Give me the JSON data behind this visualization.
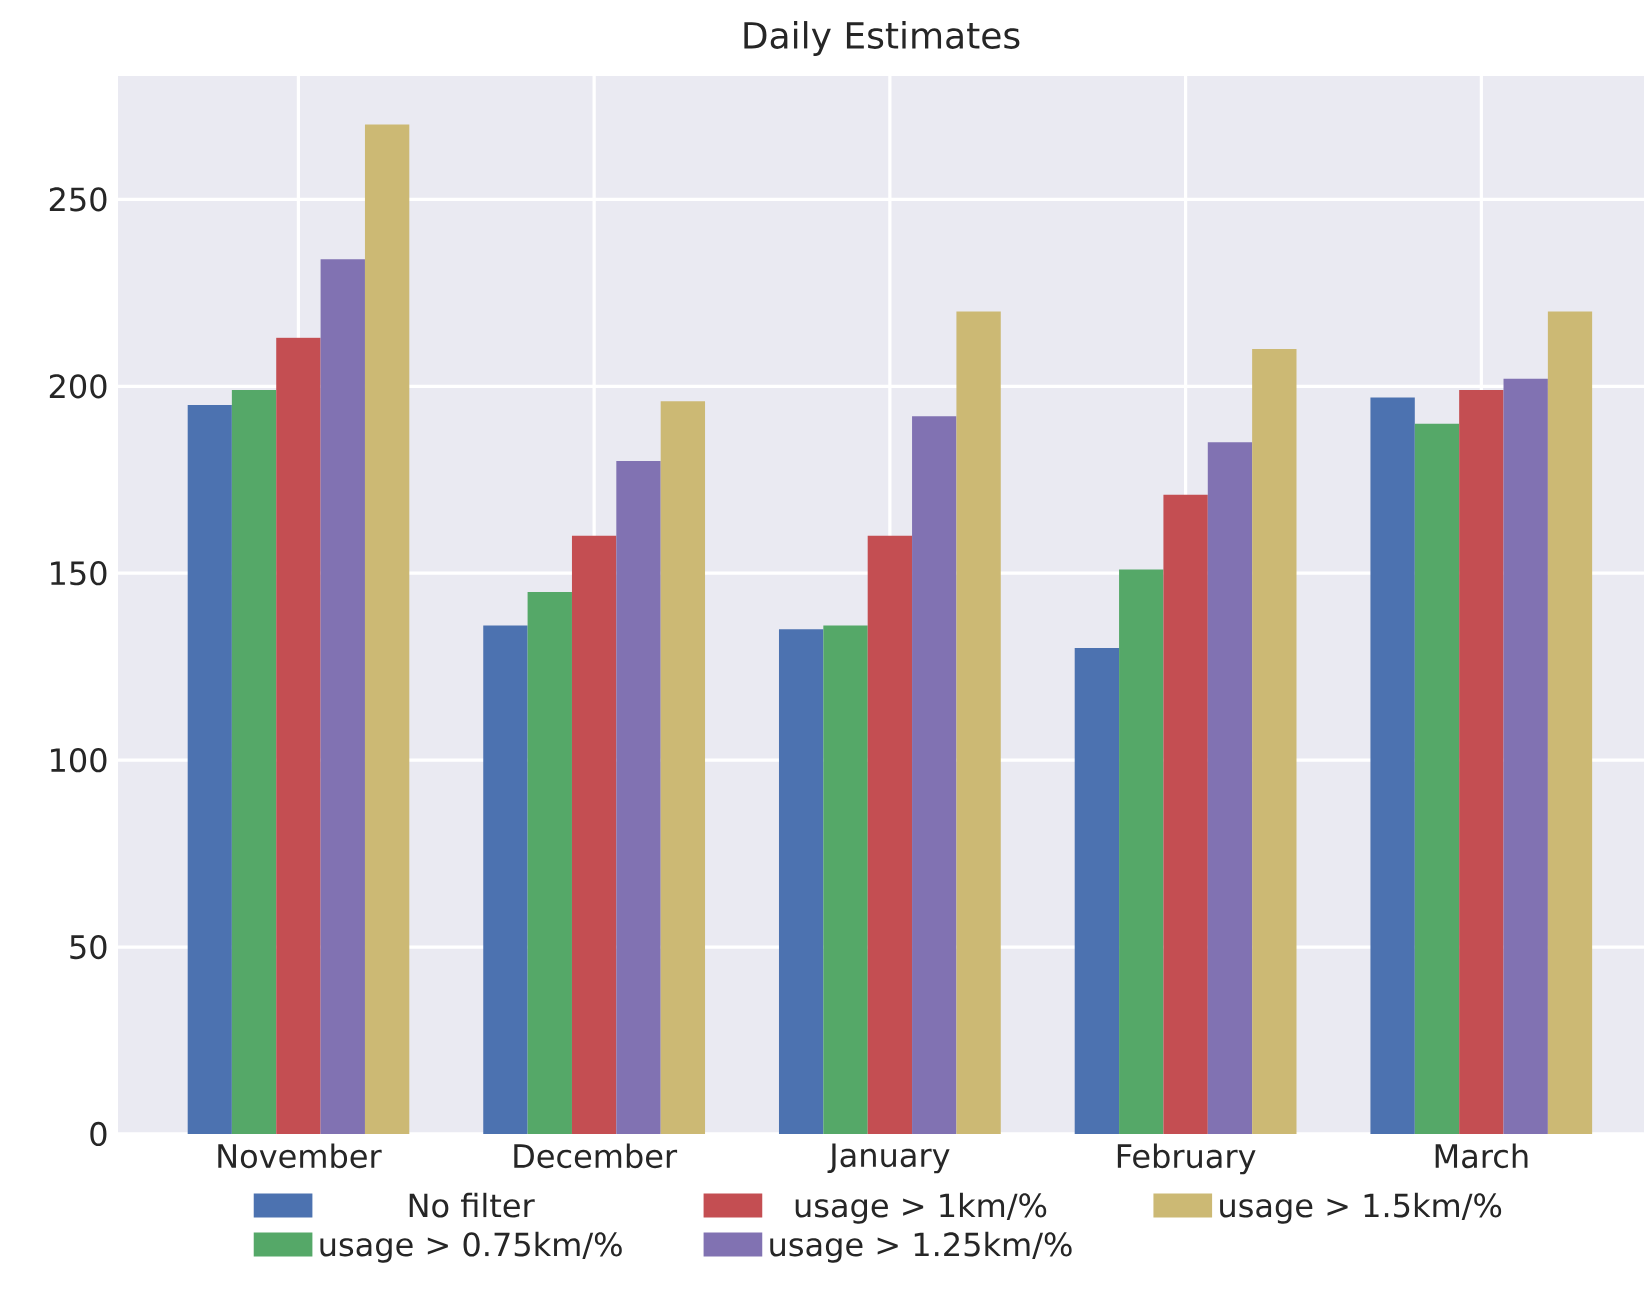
{
  "chart_data": {
    "type": "bar",
    "title": "Daily Estimates",
    "categories": [
      "November",
      "December",
      "January",
      "February",
      "March"
    ],
    "series": [
      {
        "name": "No filter",
        "color": "#4c72b0",
        "values": [
          195,
          136,
          135,
          130,
          197
        ]
      },
      {
        "name": "usage > 0.75km/%",
        "color": "#55a868",
        "values": [
          199,
          145,
          136,
          151,
          190
        ]
      },
      {
        "name": "usage > 1km/%",
        "color": "#c44e52",
        "values": [
          213,
          160,
          160,
          171,
          199
        ]
      },
      {
        "name": "usage > 1.25km/%",
        "color": "#8172b2",
        "values": [
          234,
          180,
          192,
          185,
          202
        ]
      },
      {
        "name": "usage > 1.5km/%",
        "color": "#ccb974",
        "values": [
          270,
          196,
          220,
          210,
          220
        ]
      }
    ],
    "ylim": [
      0,
      283
    ],
    "yticks": [
      0,
      50,
      100,
      150,
      200,
      250
    ],
    "grid": true,
    "legend": "bottom"
  }
}
